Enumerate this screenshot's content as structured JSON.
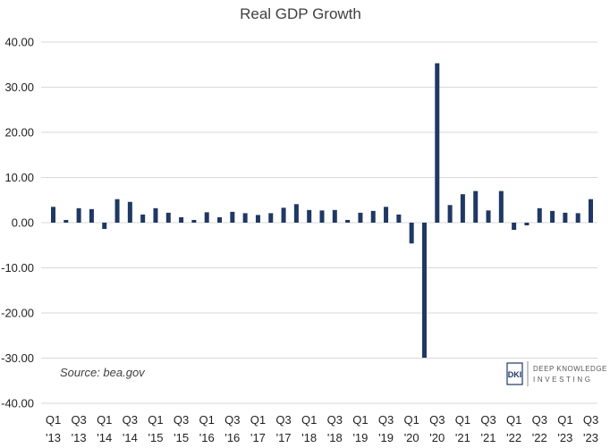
{
  "chart_data": {
    "type": "bar",
    "title": "Real GDP Growth",
    "xlabel": "",
    "ylabel": "",
    "ylim": [
      -40,
      40
    ],
    "y_ticks": [
      "40.00",
      "30.00",
      "20.00",
      "10.00",
      "0.00",
      "-10.00",
      "-20.00",
      "-30.00",
      "-40.00"
    ],
    "grid": true,
    "bar_color": "#1f3864",
    "categories": [
      "Q1 '13",
      "Q2 '13",
      "Q3 '13",
      "Q4 '13",
      "Q1 '14",
      "Q2 '14",
      "Q3 '14",
      "Q4 '14",
      "Q1 '15",
      "Q2 '15",
      "Q3 '15",
      "Q4 '15",
      "Q1 '16",
      "Q2 '16",
      "Q3 '16",
      "Q4 '16",
      "Q1 '17",
      "Q2 '17",
      "Q3 '17",
      "Q4 '17",
      "Q1 '18",
      "Q2 '18",
      "Q3 '18",
      "Q4 '18",
      "Q1 '19",
      "Q2 '19",
      "Q3 '19",
      "Q4 '19",
      "Q1 '20",
      "Q2 '20",
      "Q3 '20",
      "Q4 '20",
      "Q1 '21",
      "Q2 '21",
      "Q3 '21",
      "Q4 '21",
      "Q1 '22",
      "Q2 '22",
      "Q3 '22",
      "Q4 '22",
      "Q1 '23",
      "Q2 '23",
      "Q3 '23"
    ],
    "values": [
      3.5,
      0.6,
      3.2,
      3.0,
      -1.4,
      5.2,
      4.6,
      1.8,
      3.2,
      2.2,
      1.2,
      0.6,
      2.3,
      1.2,
      2.4,
      2.1,
      1.7,
      2.1,
      3.3,
      4.1,
      2.8,
      2.7,
      2.8,
      0.6,
      2.2,
      2.6,
      3.5,
      1.8,
      -4.6,
      -29.9,
      35.3,
      3.9,
      6.3,
      7.0,
      2.7,
      7.0,
      -1.6,
      -0.6,
      3.2,
      2.6,
      2.2,
      2.1,
      5.2
    ],
    "x_tick_labels": [
      {
        "top": "Q1",
        "bottom": "'13",
        "index": 0
      },
      {
        "top": "Q3",
        "bottom": "'13",
        "index": 2
      },
      {
        "top": "Q1",
        "bottom": "'14",
        "index": 4
      },
      {
        "top": "Q3",
        "bottom": "'14",
        "index": 6
      },
      {
        "top": "Q1",
        "bottom": "'15",
        "index": 8
      },
      {
        "top": "Q3",
        "bottom": "'15",
        "index": 10
      },
      {
        "top": "Q1",
        "bottom": "'16",
        "index": 12
      },
      {
        "top": "Q3",
        "bottom": "'16",
        "index": 14
      },
      {
        "top": "Q1",
        "bottom": "'17",
        "index": 16
      },
      {
        "top": "Q3",
        "bottom": "'17",
        "index": 18
      },
      {
        "top": "Q1",
        "bottom": "'18",
        "index": 20
      },
      {
        "top": "Q3",
        "bottom": "'18",
        "index": 22
      },
      {
        "top": "Q1",
        "bottom": "'19",
        "index": 24
      },
      {
        "top": "Q3",
        "bottom": "'19",
        "index": 26
      },
      {
        "top": "Q1",
        "bottom": "'20",
        "index": 28
      },
      {
        "top": "Q3",
        "bottom": "'20",
        "index": 30
      },
      {
        "top": "Q1",
        "bottom": "'21",
        "index": 32
      },
      {
        "top": "Q3",
        "bottom": "'21",
        "index": 34
      },
      {
        "top": "Q1",
        "bottom": "'22",
        "index": 36
      },
      {
        "top": "Q3",
        "bottom": "'22",
        "index": 38
      },
      {
        "top": "Q1",
        "bottom": "'23",
        "index": 40
      },
      {
        "top": "Q3",
        "bottom": "'23",
        "index": 42
      }
    ],
    "annotations": {
      "source": "Source: bea.gov"
    }
  },
  "logo": {
    "mark": "DKI",
    "line1": "DEEP KNOWLEDGE",
    "line2": "INVESTING"
  }
}
